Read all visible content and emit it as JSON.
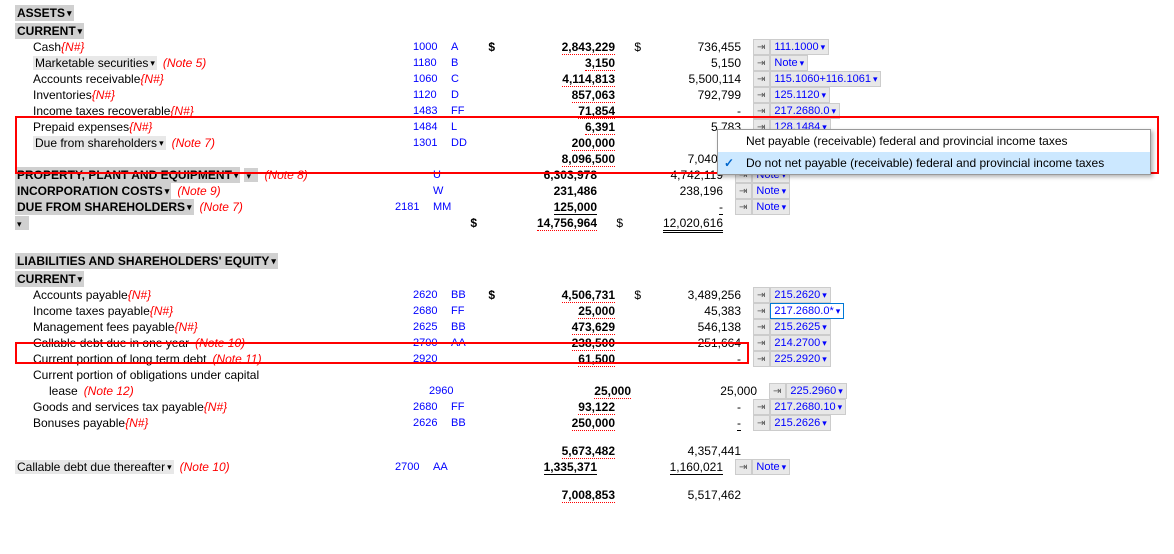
{
  "assets": {
    "header": "ASSETS",
    "currentHeader": "CURRENT",
    "rows": [
      {
        "label": "Cash",
        "nh": "{N#}",
        "code1": "1000",
        "code2": "A",
        "amt1": "2,843,229",
        "amt2": "736,455",
        "ref": "111.1000",
        "d1": "$",
        "d2": "$"
      },
      {
        "label": "Marketable securities",
        "note": "(Note 5)",
        "code1": "1180",
        "code2": "B",
        "amt1": "3,150",
        "amt2": "5,150",
        "ref": "Note"
      },
      {
        "label": "Accounts receivable",
        "nh": "{N#}",
        "code1": "1060",
        "code2": "C",
        "amt1": "4,114,813",
        "amt2": "5,500,114",
        "ref": "115.1060+116.1061"
      },
      {
        "label": "Inventories",
        "nh": "{N#}",
        "code1": "1120",
        "code2": "D",
        "amt1": "857,063",
        "amt2": "792,799",
        "ref": "125.1120"
      },
      {
        "label": "Income taxes recoverable",
        "nh": "{N#}",
        "code1": "1483",
        "code2": "FF",
        "amt1": "71,854",
        "amt2": "-",
        "ref": "217.2680.0"
      },
      {
        "label": "Prepaid expenses",
        "nh": "{N#}",
        "code1": "1484",
        "code2": "L",
        "amt1": "6,391",
        "amt2": "5,783",
        "ref": "128.1484"
      },
      {
        "label": "Due from shareholders",
        "note": "(Note 7)",
        "code1": "1301",
        "code2": "DD",
        "amt1": "200,000",
        "amt2": "-",
        "ref": "Note",
        "sub": true
      }
    ],
    "subtotal": {
      "amt1": "8,096,500",
      "amt2": "7,040,301"
    },
    "ppe": {
      "label": "PROPERTY, PLANT AND EQUIPMENT",
      "note": "(Note 8)",
      "code2": "U",
      "amt1": "6,303,978",
      "amt2": "4,742,119",
      "ref": "Note"
    },
    "inc": {
      "label": "INCORPORATION COSTS",
      "note": "(Note 9)",
      "code2": "W",
      "amt1": "231,486",
      "amt2": "238,196",
      "ref": "Note"
    },
    "dfs": {
      "label": "DUE FROM SHAREHOLDERS",
      "note": "(Note 7)",
      "code1": "2181",
      "code2": "MM",
      "amt1": "125,000",
      "amt2": "-",
      "ref": "Note"
    },
    "total": {
      "amt1": "14,756,964",
      "amt2": "12,020,616",
      "d1": "$",
      "d2": "$"
    }
  },
  "liabilities": {
    "header": "LIABILITIES AND SHAREHOLDERS' EQUITY",
    "currentHeader": "CURRENT",
    "rows": [
      {
        "label": "Accounts payable",
        "nh": "{N#}",
        "code1": "2620",
        "code2": "BB",
        "amt1": "4,506,731",
        "amt2": "3,489,256",
        "ref": "215.2620",
        "d1": "$",
        "d2": "$"
      },
      {
        "label": "Income taxes payable",
        "nh": "{N#}",
        "code1": "2680",
        "code2": "FF",
        "amt1": "25,000",
        "amt2": "45,383",
        "ref": "217.2680.0*"
      },
      {
        "label": "Management fees payable",
        "nh": "{N#}",
        "code1": "2625",
        "code2": "BB",
        "amt1": "473,629",
        "amt2": "546,138",
        "ref": "215.2625"
      },
      {
        "label": "Callable debt due in one year",
        "note": "(Note 10)",
        "code1": "2700",
        "code2": "AA",
        "amt1": "238,500",
        "amt2": "251,664",
        "ref": "214.2700"
      },
      {
        "label": "Current portion of long term debt",
        "note": "(Note 11)",
        "code1": "2920",
        "amt1": "61,500",
        "amt2": "-",
        "ref": "225.2920"
      },
      {
        "label": "Current portion of obligations under capital",
        "wrap": true
      },
      {
        "label": "lease",
        "note": "(Note 12)",
        "code1": "2960",
        "amt1": "25,000",
        "amt2": "25,000",
        "ref": "225.2960",
        "indent": true
      },
      {
        "label": "Goods and services tax payable",
        "nh": "{N#}",
        "code1": "2680",
        "code2": "FF",
        "amt1": "93,122",
        "amt2": "-",
        "ref": "217.2680.10"
      },
      {
        "label": "Bonuses payable",
        "nh": "{N#}",
        "code1": "2626",
        "code2": "BB",
        "amt1": "250,000",
        "amt2": "-",
        "ref": "215.2626",
        "sub": true
      }
    ],
    "subtotal": {
      "amt1": "5,673,482",
      "amt2": "4,357,441"
    },
    "callable": {
      "label": "Callable debt due thereafter",
      "note": "(Note 10)",
      "code1": "2700",
      "code2": "AA",
      "amt1": "1,335,371",
      "amt2": "1,160,021",
      "ref": "Note"
    },
    "total": {
      "amt1": "7,008,853",
      "amt2": "5,517,462"
    }
  },
  "popup": {
    "item1": "Net payable (receivable) federal and provincial income taxes",
    "item2": "Do not net payable (receivable) federal and provincial income taxes"
  }
}
